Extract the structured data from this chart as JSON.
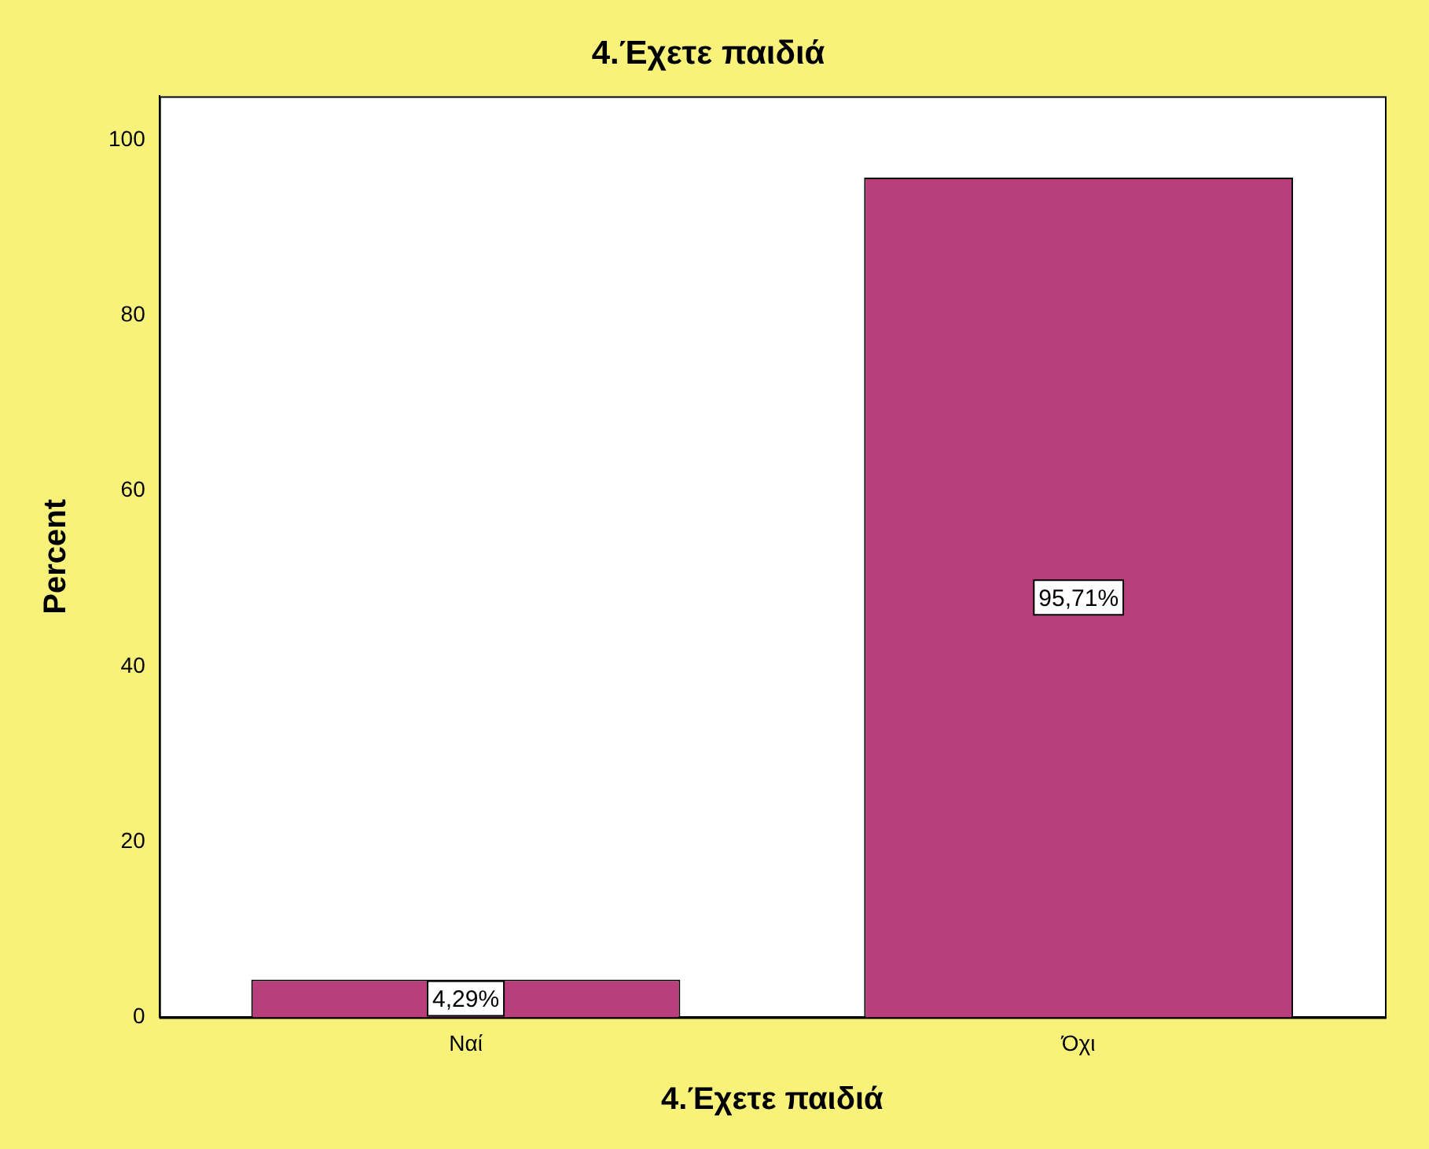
{
  "chart_data": {
    "type": "bar",
    "title": "4.Έχετε παιδιά",
    "xlabel": "4.Έχετε παιδιά",
    "ylabel": "Percent",
    "categories": [
      "Ναί",
      "Όχι"
    ],
    "values": [
      4.29,
      95.71
    ],
    "value_labels": [
      "4,29%",
      "95,71%"
    ],
    "color": "#b83f7c",
    "ylim": [
      0,
      105
    ],
    "yticks": [
      0,
      20,
      40,
      60,
      80,
      100
    ],
    "grid": false,
    "legend": false
  }
}
